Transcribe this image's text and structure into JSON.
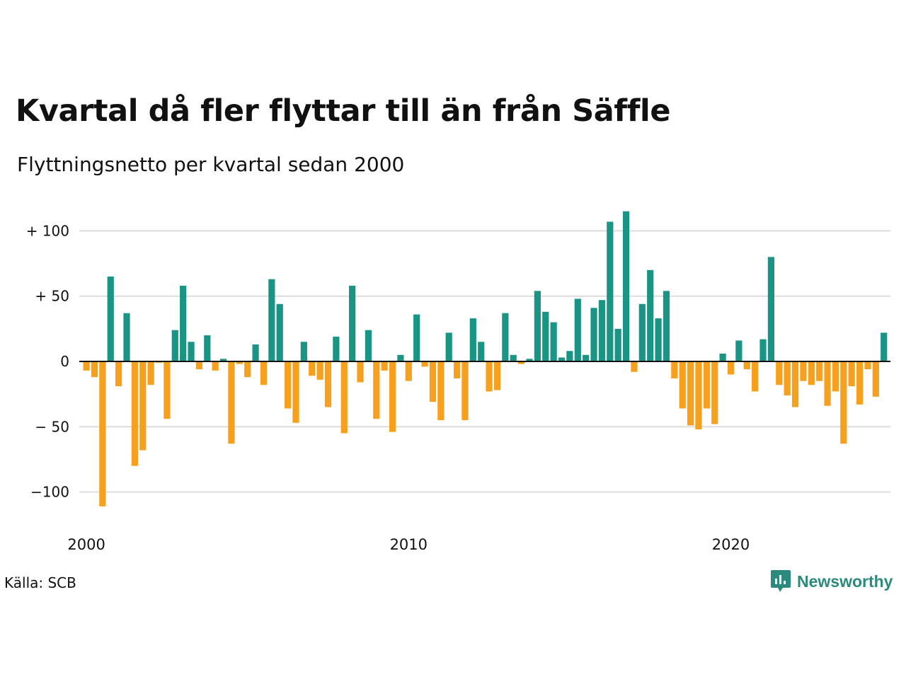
{
  "title": "Kvartal då fler flyttar till än från Säffle",
  "subtitle": "Flyttningsnetto per kvartal sedan 2000",
  "source": "Källa: SCB",
  "brand": {
    "name": "Newsworthy",
    "icon": "newsworthy-logo-icon",
    "color": "#2b8a7d"
  },
  "colors": {
    "positive": "#1a9485",
    "negative": "#f7a01d",
    "grid": "#dddddd",
    "axis": "#111111"
  },
  "chart_data": {
    "type": "bar",
    "title": "Kvartal då fler flyttar till än från Säffle",
    "subtitle": "Flyttningsnetto per kvartal sedan 2000",
    "xlabel": "",
    "ylabel": "",
    "x_start": "2000 Q1",
    "x_ticks": [
      "2000",
      "2010",
      "2020"
    ],
    "y_ticks": [
      {
        "value": 100,
        "label": "+ 100"
      },
      {
        "value": 50,
        "label": "+  50"
      },
      {
        "value": 0,
        "label": "0"
      },
      {
        "value": -50,
        "label": "− 50"
      },
      {
        "value": -100,
        "label": "−100"
      }
    ],
    "ylim": [
      -115,
      117
    ],
    "grid": true,
    "legend": "none",
    "values": [
      -7,
      -12,
      -111,
      65,
      -19,
      37,
      -80,
      -68,
      -18,
      -1,
      -44,
      24,
      58,
      15,
      -6,
      20,
      -7,
      2,
      -63,
      -2,
      -12,
      13,
      -18,
      63,
      44,
      -36,
      -47,
      15,
      -11,
      -14,
      -35,
      19,
      -55,
      58,
      -16,
      24,
      -44,
      -7,
      -54,
      5,
      -15,
      36,
      -4,
      -31,
      -45,
      22,
      -13,
      -45,
      33,
      15,
      -23,
      -22,
      37,
      5,
      -2,
      2,
      54,
      38,
      30,
      3,
      8,
      48,
      5,
      41,
      47,
      107,
      25,
      115,
      -8,
      44,
      70,
      33,
      54,
      -13,
      -36,
      -49,
      -52,
      -36,
      -48,
      6,
      -10,
      16,
      -6,
      -23,
      17,
      80,
      -18,
      -26,
      -35,
      -15,
      -18,
      -15,
      -34,
      -23,
      -63,
      -19,
      -33,
      -6,
      -27,
      22
    ]
  }
}
